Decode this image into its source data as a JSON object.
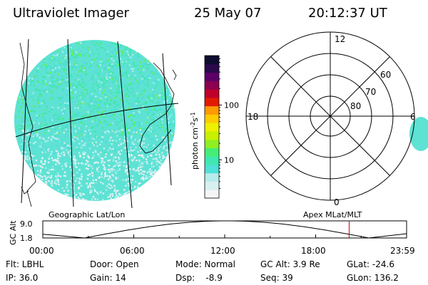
{
  "header": {
    "instrument": "Ultraviolet Imager",
    "date": "25 May 07",
    "time": "20:12:37 UT"
  },
  "colorbar": {
    "unit_main": "photon cm",
    "unit_sup1": "-2",
    "unit_mid": "s",
    "unit_sup2": "-1",
    "ticks": [
      {
        "label": "100",
        "value": 100
      },
      {
        "label": "10",
        "value": 10
      }
    ],
    "colors": [
      "#f5f5f5",
      "#d8f0f0",
      "#b8ecec",
      "#4fe0d8",
      "#3fe8b0",
      "#44ee77",
      "#8fef22",
      "#c8f000",
      "#eef000",
      "#ffcc00",
      "#ff9a00",
      "#e41a00",
      "#c0002a",
      "#8c0050",
      "#5c0068",
      "#2a0a4c",
      "#0d0d30"
    ]
  },
  "panels": {
    "geographic_label": "Geographic Lat/Lon",
    "apex_label": "Apex  MLat/MLT"
  },
  "polar_plot": {
    "lat_labels": [
      "80",
      "70",
      "60"
    ],
    "mlt_labels": {
      "top": "12",
      "left": "18",
      "right": "6",
      "bottom": "0"
    }
  },
  "timeline": {
    "y_title": "GC Alt",
    "y_ticks": [
      "9.0",
      "1.8"
    ],
    "x_ticks": [
      "00:00",
      "06:00",
      "12:00",
      "18:00",
      "23:59"
    ],
    "current_hour": 20.21
  },
  "status": {
    "flt": "Flt: LBHL",
    "ip": "IP: 36.0",
    "door": "Door: Open",
    "gain": "Gain: 14",
    "mode": "Mode: Normal",
    "dsp": "Dsp:    -8.9",
    "gc_alt": "GC Alt: 3.9 Re",
    "seq": "Seq: 39",
    "glat": "GLat: -24.6",
    "glon": "GLon: 136.2"
  }
}
